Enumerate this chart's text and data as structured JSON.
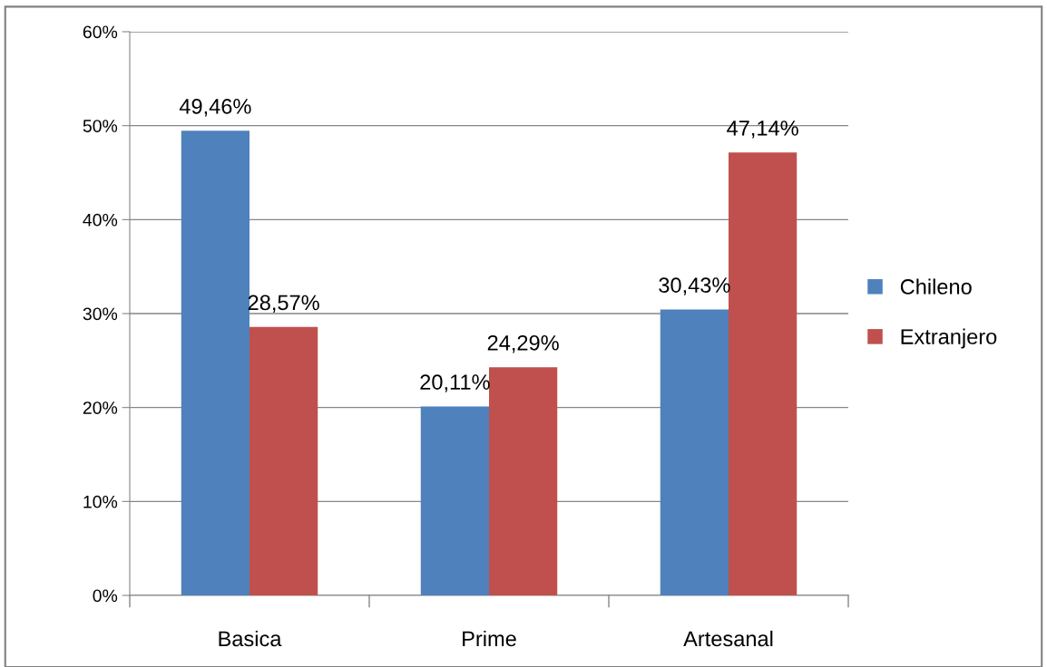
{
  "chart_data": {
    "type": "bar",
    "categories": [
      "Basica",
      "Prime",
      "Artesanal"
    ],
    "series": [
      {
        "name": "Chileno",
        "color": "#4f81bd",
        "values": [
          49.46,
          20.11,
          30.43
        ],
        "value_labels": [
          "49,46%",
          "20,11%",
          "30,43%"
        ]
      },
      {
        "name": "Extranjero",
        "color": "#c0504d",
        "values": [
          28.57,
          24.29,
          47.14
        ],
        "value_labels": [
          "28,57%",
          "24,29%",
          "47,14%"
        ]
      }
    ],
    "ylim": [
      0,
      60
    ],
    "yticks": [
      {
        "value": 0,
        "label": "0%"
      },
      {
        "value": 10,
        "label": "10%"
      },
      {
        "value": 20,
        "label": "20%"
      },
      {
        "value": 30,
        "label": "30%"
      },
      {
        "value": 40,
        "label": "40%"
      },
      {
        "value": 50,
        "label": "50%"
      },
      {
        "value": 60,
        "label": "60%"
      }
    ],
    "grid": "y",
    "legend": "right"
  }
}
